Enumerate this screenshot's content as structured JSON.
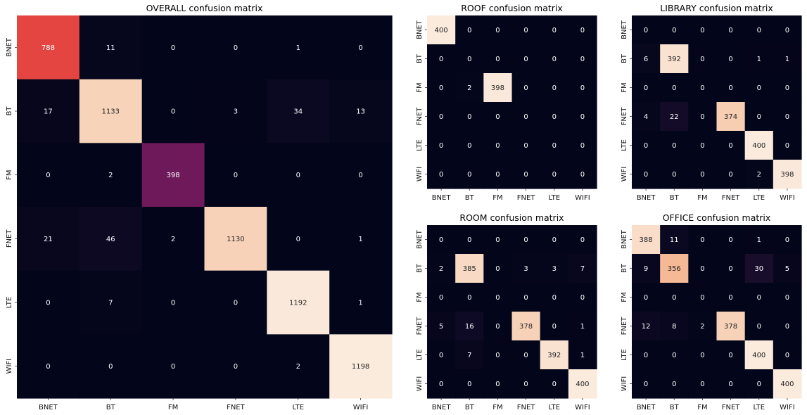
{
  "chart_data": [
    {
      "type": "heatmap",
      "title": "OVERALL confusion matrix",
      "x_categories": [
        "BNET",
        "BT",
        "FM",
        "FNET",
        "LTE",
        "WIFI"
      ],
      "y_categories": [
        "BNET",
        "BT",
        "FM",
        "FNET",
        "LTE",
        "WIFI"
      ],
      "values": [
        [
          788,
          11,
          0,
          0,
          1,
          0
        ],
        [
          17,
          1133,
          0,
          3,
          34,
          13
        ],
        [
          0,
          2,
          398,
          0,
          0,
          0
        ],
        [
          21,
          46,
          2,
          1130,
          0,
          1
        ],
        [
          0,
          7,
          0,
          0,
          1192,
          1
        ],
        [
          0,
          0,
          0,
          0,
          2,
          1198
        ]
      ]
    },
    {
      "type": "heatmap",
      "title": "ROOF confusion matrix",
      "x_categories": [
        "BNET",
        "BT",
        "FM",
        "FNET",
        "LTE",
        "WIFI"
      ],
      "y_categories": [
        "BNET",
        "BT",
        "FM",
        "FNET",
        "LTE",
        "WIFI"
      ],
      "values": [
        [
          400,
          0,
          0,
          0,
          0,
          0
        ],
        [
          0,
          0,
          0,
          0,
          0,
          0
        ],
        [
          0,
          2,
          398,
          0,
          0,
          0
        ],
        [
          0,
          0,
          0,
          0,
          0,
          0
        ],
        [
          0,
          0,
          0,
          0,
          0,
          0
        ],
        [
          0,
          0,
          0,
          0,
          0,
          0
        ]
      ]
    },
    {
      "type": "heatmap",
      "title": "LIBRARY confusion matrix",
      "x_categories": [
        "BNET",
        "BT",
        "FM",
        "FNET",
        "LTE",
        "WIFI"
      ],
      "y_categories": [
        "BNET",
        "BT",
        "FM",
        "FNET",
        "LTE",
        "WIFI"
      ],
      "values": [
        [
          0,
          0,
          0,
          0,
          0,
          0
        ],
        [
          6,
          392,
          0,
          0,
          1,
          1
        ],
        [
          0,
          0,
          0,
          0,
          0,
          0
        ],
        [
          4,
          22,
          0,
          374,
          0,
          0
        ],
        [
          0,
          0,
          0,
          0,
          400,
          0
        ],
        [
          0,
          0,
          0,
          0,
          2,
          398
        ]
      ]
    },
    {
      "type": "heatmap",
      "title": "ROOM confusion matrix",
      "x_categories": [
        "BNET",
        "BT",
        "FM",
        "FNET",
        "LTE",
        "WIFI"
      ],
      "y_categories": [
        "BNET",
        "BT",
        "FM",
        "FNET",
        "LTE",
        "WIFI"
      ],
      "values": [
        [
          0,
          0,
          0,
          0,
          0,
          0
        ],
        [
          2,
          385,
          0,
          3,
          3,
          7
        ],
        [
          0,
          0,
          0,
          0,
          0,
          0
        ],
        [
          5,
          16,
          0,
          378,
          0,
          1
        ],
        [
          0,
          7,
          0,
          0,
          392,
          1
        ],
        [
          0,
          0,
          0,
          0,
          0,
          400
        ]
      ]
    },
    {
      "type": "heatmap",
      "title": "OFFICE confusion matrix",
      "x_categories": [
        "BNET",
        "BT",
        "FM",
        "FNET",
        "LTE",
        "WIFI"
      ],
      "y_categories": [
        "BNET",
        "BT",
        "FM",
        "FNET",
        "LTE",
        "WIFI"
      ],
      "values": [
        [
          388,
          11,
          0,
          0,
          1,
          0
        ],
        [
          9,
          356,
          0,
          0,
          30,
          5
        ],
        [
          0,
          0,
          0,
          0,
          0,
          0
        ],
        [
          12,
          8,
          2,
          378,
          0,
          0
        ],
        [
          0,
          0,
          0,
          0,
          400,
          0
        ],
        [
          0,
          0,
          0,
          0,
          0,
          400
        ]
      ]
    }
  ]
}
